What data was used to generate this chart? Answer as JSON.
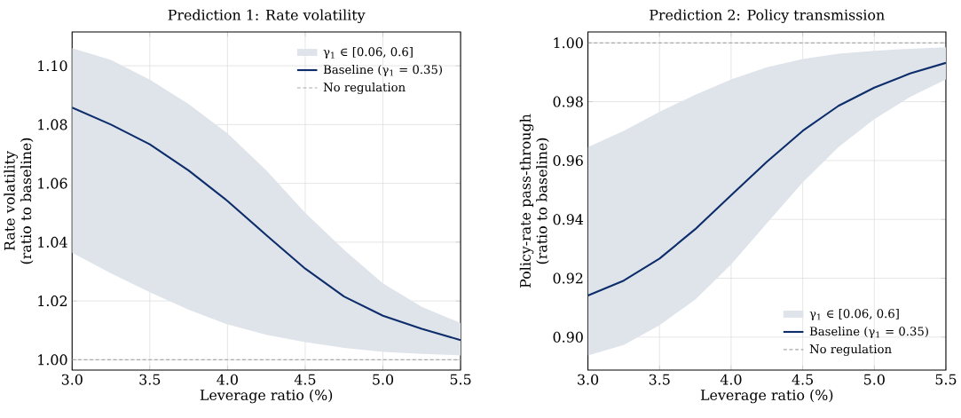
{
  "chart_data": [
    {
      "type": "line",
      "title": "Prediction 1: Rate volatility",
      "xlabel": "Leverage ratio (%)",
      "ylabel": "Rate volatility (ratio to baseline)",
      "x": [
        3.0,
        3.25,
        3.5,
        3.75,
        4.0,
        4.25,
        4.5,
        4.75,
        5.0,
        5.25,
        5.5
      ],
      "xlim": [
        3.0,
        5.5
      ],
      "xticks": [
        {
          "value": 3.0,
          "label": "3.0"
        },
        {
          "value": 3.5,
          "label": "3.5"
        },
        {
          "value": 4.0,
          "label": "4.0"
        },
        {
          "value": 4.5,
          "label": "4.5"
        },
        {
          "value": 5.0,
          "label": "5.0"
        },
        {
          "value": 5.5,
          "label": "5.5"
        }
      ],
      "ylim": [
        0.9965,
        1.1115
      ],
      "yticks": [
        {
          "value": 1.0,
          "label": "1.00"
        },
        {
          "value": 1.02,
          "label": "1.02"
        },
        {
          "value": 1.04,
          "label": "1.04"
        },
        {
          "value": 1.06,
          "label": "1.06"
        },
        {
          "value": 1.08,
          "label": "1.08"
        },
        {
          "value": 1.1,
          "label": "1.10"
        }
      ],
      "grid": true,
      "legend": "top right",
      "annotations": [
        "γ$_{1}$ ∈ [0.06, 0.6]"
      ],
      "series": [
        {
          "name": "Baseline (γ$_{1}$ = 0.35)",
          "color": "#0d2d6b",
          "values": [
            1.0858,
            1.08,
            1.0733,
            1.0644,
            1.054,
            1.0424,
            1.031,
            1.0215,
            1.015,
            1.0105,
            1.0067
          ],
          "lower": [
            1.0364,
            1.0294,
            1.023,
            1.017,
            1.012,
            1.0085,
            1.006,
            1.004,
            1.0027,
            1.002,
            1.0015
          ],
          "upper": [
            1.106,
            1.102,
            1.0953,
            1.087,
            1.077,
            1.0644,
            1.05,
            1.0374,
            1.026,
            1.018,
            1.0125
          ]
        }
      ],
      "ref_lines": [
        {
          "axis": "y",
          "value": 1.0,
          "label": "No regulation",
          "color": "#aaaaaa",
          "line_style": "dashed"
        }
      ]
    },
    {
      "type": "line",
      "title": "Prediction 2: Policy transmission",
      "xlabel": "Leverage ratio (%)",
      "ylabel": "Policy-rate pass-through (ratio to baseline)",
      "x": [
        3.0,
        3.25,
        3.5,
        3.75,
        4.0,
        4.25,
        4.5,
        4.75,
        5.0,
        5.25,
        5.5
      ],
      "xlim": [
        3.0,
        5.5
      ],
      "xticks": [
        {
          "value": 3.0,
          "label": "3.0"
        },
        {
          "value": 3.5,
          "label": "3.5"
        },
        {
          "value": 4.0,
          "label": "4.0"
        },
        {
          "value": 4.5,
          "label": "4.5"
        },
        {
          "value": 5.0,
          "label": "5.0"
        },
        {
          "value": 5.5,
          "label": "5.5"
        }
      ],
      "ylim": [
        0.8888,
        1.0037
      ],
      "yticks": [
        {
          "value": 0.9,
          "label": "0.90"
        },
        {
          "value": 0.92,
          "label": "0.92"
        },
        {
          "value": 0.94,
          "label": "0.94"
        },
        {
          "value": 0.96,
          "label": "0.96"
        },
        {
          "value": 0.98,
          "label": "0.98"
        },
        {
          "value": 1.0,
          "label": "1.00"
        }
      ],
      "grid": true,
      "legend": "bottom right",
      "annotations": [
        "γ$_{1}$ ∈ [0.06, 0.6]"
      ],
      "series": [
        {
          "name": "Baseline (γ$_{1}$ = 0.35)",
          "color": "#0d2d6b",
          "values": [
            0.9141,
            0.9192,
            0.9267,
            0.9367,
            0.9482,
            0.9596,
            0.9701,
            0.9786,
            0.9848,
            0.9896,
            0.9932
          ],
          "lower": [
            0.8938,
            0.8973,
            0.904,
            0.9128,
            0.9247,
            0.9387,
            0.9526,
            0.9646,
            0.9741,
            0.9816,
            0.9876
          ],
          "upper": [
            0.9646,
            0.9701,
            0.9766,
            0.9824,
            0.9876,
            0.9917,
            0.9945,
            0.9963,
            0.9973,
            0.998,
            0.9985
          ]
        }
      ],
      "ref_lines": [
        {
          "axis": "y",
          "value": 1.0,
          "label": "No regulation",
          "color": "#aaaaaa",
          "line_style": "dashed"
        }
      ]
    }
  ]
}
